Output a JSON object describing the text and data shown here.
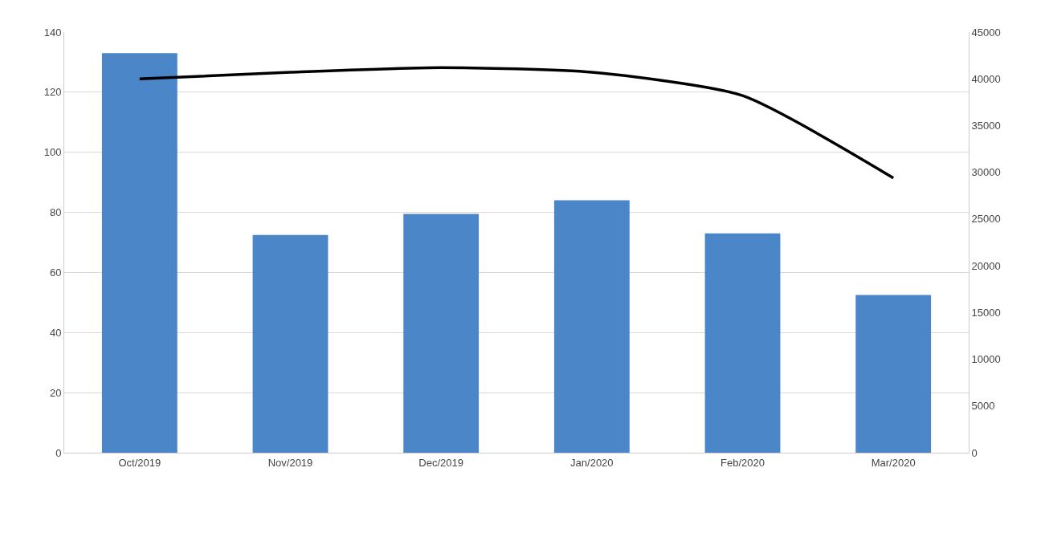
{
  "chart_data": {
    "type": "bar",
    "categories": [
      "Oct/2019",
      "Nov/2019",
      "Dec/2019",
      "Jan/2020",
      "Feb/2020",
      "Mar/2020"
    ],
    "series": [
      {
        "color": "#4a86c8",
        "values": [
          133,
          72.5,
          79.5,
          84,
          73,
          52.5
        ]
      },
      {
        "type": "line",
        "axis": "y2",
        "color": "#000000",
        "values": [
          40000,
          40700,
          41200,
          40700,
          38200,
          29400
        ]
      }
    ],
    "ylim": [
      0,
      140
    ],
    "yticks": [
      0,
      20,
      40,
      60,
      80,
      100,
      120,
      140
    ],
    "y2lim": [
      0,
      45000
    ],
    "y2ticks": [
      0,
      5000,
      10000,
      15000,
      20000,
      25000,
      30000,
      35000,
      40000,
      45000
    ],
    "grid": "y",
    "marker": "none",
    "line_style": "solid"
  }
}
